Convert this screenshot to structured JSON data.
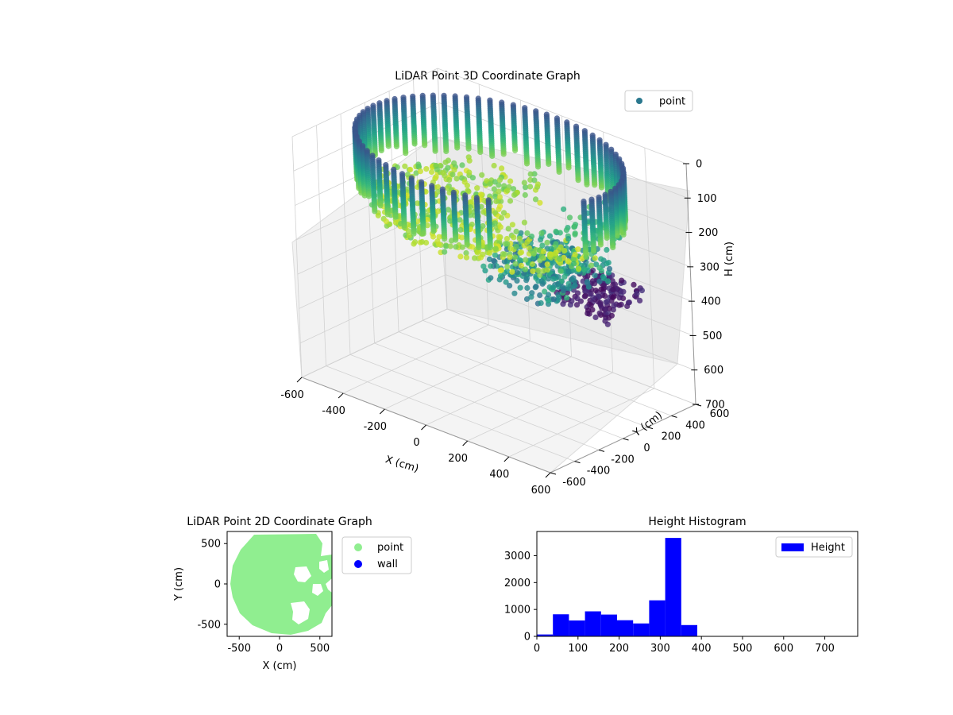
{
  "chart_data": [
    {
      "type": "scatter3d",
      "title": "LiDAR Point 3D Coordinate Graph",
      "xlabel": "X (cm)",
      "ylabel": "Y (cm)",
      "zlabel": "H (cm)",
      "xlim": [
        -600,
        600
      ],
      "ylim": [
        -600,
        600
      ],
      "zlim": [
        0,
        700
      ],
      "z_inverted": true,
      "xticks": [
        "-600",
        "-400",
        "-200",
        "0",
        "200",
        "400",
        "600"
      ],
      "yticks": [
        "-600",
        "-400",
        "-200",
        "0",
        "200",
        "400",
        "600"
      ],
      "zticks": [
        "0",
        "100",
        "200",
        "300",
        "400",
        "500",
        "600",
        "700"
      ],
      "colormap": "viridis",
      "legend": {
        "location": "upper-right",
        "entries": [
          {
            "label": "point",
            "color": "#2a788e"
          }
        ]
      },
      "grid": true
    },
    {
      "type": "scatter",
      "title": "LiDAR Point 2D Coordinate Graph",
      "xlabel": "X (cm)",
      "ylabel": "Y (cm)",
      "xlim": [
        -650,
        650
      ],
      "ylim": [
        -650,
        650
      ],
      "xticks": [
        "-500",
        "0",
        "500"
      ],
      "yticks": [
        "-500",
        "0",
        "500"
      ],
      "series": [
        {
          "name": "point",
          "color": "#90ee90"
        },
        {
          "name": "wall",
          "color": "#0000ff"
        }
      ],
      "legend": {
        "location": "outside-right"
      }
    },
    {
      "type": "bar",
      "title": "Height Histogram",
      "xlim": [
        0,
        780
      ],
      "ylim": [
        0,
        3900
      ],
      "xticks": [
        "0",
        "100",
        "200",
        "300",
        "400",
        "500",
        "600",
        "700"
      ],
      "yticks": [
        "0",
        "1000",
        "2000",
        "3000"
      ],
      "bin_width": 39,
      "bins": [
        {
          "x": 0,
          "value": 70
        },
        {
          "x": 39,
          "value": 820
        },
        {
          "x": 78,
          "value": 590
        },
        {
          "x": 117,
          "value": 930
        },
        {
          "x": 156,
          "value": 810
        },
        {
          "x": 195,
          "value": 600
        },
        {
          "x": 234,
          "value": 480
        },
        {
          "x": 273,
          "value": 1340
        },
        {
          "x": 312,
          "value": 3660
        },
        {
          "x": 351,
          "value": 420
        }
      ],
      "series": [
        {
          "name": "Height",
          "color": "#0000ff"
        }
      ],
      "legend": {
        "location": "upper-right"
      }
    }
  ]
}
